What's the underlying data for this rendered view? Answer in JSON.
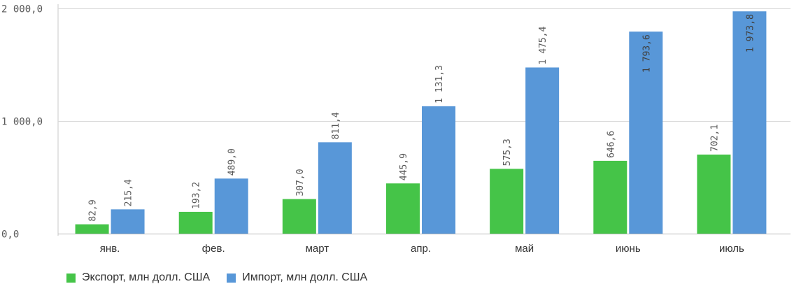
{
  "chart_data": {
    "type": "bar",
    "categories": [
      "янв.",
      "фев.",
      "март",
      "апр.",
      "май",
      "июнь",
      "июль"
    ],
    "series": [
      {
        "name": "Экспорт, млн долл. США",
        "color": "#45c448",
        "values": [
          82.9,
          193.2,
          307.0,
          445.9,
          575.3,
          646.6,
          702.1
        ]
      },
      {
        "name": "Импорт, млн долл. США",
        "color": "#5897d8",
        "values": [
          215.4,
          489.0,
          811.4,
          1131.3,
          1475.4,
          1793.6,
          1973.8
        ]
      }
    ],
    "value_labels": [
      [
        "82,9",
        "193,2",
        "307,0",
        "445,9",
        "575,3",
        "646,6",
        "702,1"
      ],
      [
        "215,4",
        "489,0",
        "811,4",
        "1 131,3",
        "1 475,4",
        "1 793,6",
        "1 973,8"
      ]
    ],
    "yticks": [
      0,
      1000,
      2000
    ],
    "ytick_labels": [
      "0,0",
      "1 000,0",
      "2 000,0"
    ],
    "ylim": [
      0,
      2000
    ],
    "grid": true,
    "legend_position": "bottom-left",
    "title": "",
    "xlabel": "",
    "ylabel": ""
  }
}
